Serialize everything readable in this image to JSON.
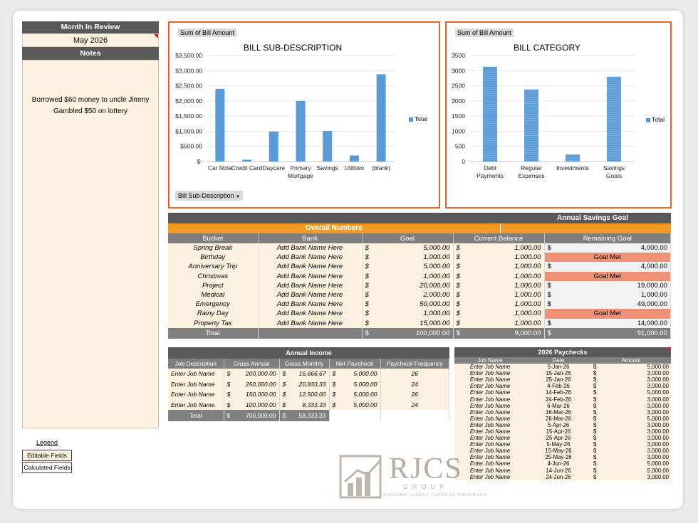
{
  "review": {
    "title": "Month In Review",
    "month": "May 2026",
    "notes_title": "Notes",
    "notes_lines": [
      "Borrowed $60 money to uncle Jimmy",
      "Gambled $50 on lottery"
    ]
  },
  "legend": {
    "title": "Legend",
    "editable": "Editable Fields",
    "calculated": "Calculated Fields"
  },
  "chart_data": [
    {
      "type": "bar",
      "field_label": "Sum of Bill Amount",
      "title": "BILL SUB-DESCRIPTION",
      "categories": [
        "Car Note",
        "Credit Card",
        "Daycare",
        "Primary Mortgage",
        "Savings",
        "Utilities",
        "(blank)"
      ],
      "series": [
        {
          "name": "Total",
          "values": [
            2400,
            60,
            990,
            2000,
            1010,
            200,
            2880
          ]
        }
      ],
      "ylim": [
        0,
        3500
      ],
      "yticks": [
        "$-",
        "$500.00",
        "$1,000.00",
        "$1,500.00",
        "$2,000.00",
        "$2,500.00",
        "$3,000.00",
        "$3,500.00"
      ],
      "filter_label": "Bill Sub-Description",
      "legend": "right"
    },
    {
      "type": "bar",
      "field_label": "Sum of Bill Amount",
      "title": "BILL CATEGORY",
      "categories": [
        "Debt Payments",
        "Regular Expenses",
        "Investments",
        "Savings Goals"
      ],
      "series": [
        {
          "name": "Total",
          "values": [
            3130,
            2380,
            230,
            2800
          ]
        }
      ],
      "ylim": [
        0,
        3500
      ],
      "yticks": [
        "0",
        "500",
        "1000",
        "1500",
        "2000",
        "2500",
        "3000",
        "3500"
      ],
      "legend": "right"
    }
  ],
  "savings": {
    "title": "Annual Savings Goal",
    "subtitle": "Overall Numbers",
    "headers": [
      "Bucket",
      "Bank",
      "Goal",
      "Current Balance",
      "Remaining Goal"
    ],
    "rows": [
      {
        "bucket": "Spring Break",
        "bank": "Add Bank Name Here",
        "goal": "5,000.00",
        "balance": "1,000.00",
        "remaining": "4,000.00"
      },
      {
        "bucket": "Birthday",
        "bank": "Add Bank Name Here",
        "goal": "1,000.00",
        "balance": "1,000.00",
        "remaining": "Goal Met"
      },
      {
        "bucket": "Anniversary Trip",
        "bank": "Add Bank Name Here",
        "goal": "5,000.00",
        "balance": "1,000.00",
        "remaining": "4,000.00"
      },
      {
        "bucket": "Christmas",
        "bank": "Add Bank Name Here",
        "goal": "1,000.00",
        "balance": "1,000.00",
        "remaining": "Goal Met"
      },
      {
        "bucket": "Project",
        "bank": "Add Bank Name Here",
        "goal": "20,000.00",
        "balance": "1,000.00",
        "remaining": "19,000.00"
      },
      {
        "bucket": "Medical",
        "bank": "Add Bank Name Here",
        "goal": "2,000.00",
        "balance": "1,000.00",
        "remaining": "1,000.00"
      },
      {
        "bucket": "Emergency",
        "bank": "Add Bank Name Here",
        "goal": "50,000.00",
        "balance": "1,000.00",
        "remaining": "49,000.00"
      },
      {
        "bucket": "Rainy Day",
        "bank": "Add Bank Name Here",
        "goal": "1,000.00",
        "balance": "1,000.00",
        "remaining": "Goal Met"
      },
      {
        "bucket": "Property Tax",
        "bank": "Add Bank Name Here",
        "goal": "15,000.00",
        "balance": "1,000.00",
        "remaining": "14,000.00"
      }
    ],
    "total": {
      "label": "Total",
      "goal": "100,000.00",
      "balance": "9,000.00",
      "remaining": "91,000.00"
    }
  },
  "income": {
    "title": "Annual Income",
    "headers": [
      "Job Description",
      "Gross Annual",
      "Gross Monthly",
      "Net Paycheck",
      "Paycheck Frequency"
    ],
    "rows": [
      {
        "job": "Enter Job Name",
        "annual": "200,000.00",
        "monthly": "16,666.67",
        "net": "5,000.00",
        "freq": "26"
      },
      {
        "job": "Enter Job Name",
        "annual": "250,000.00",
        "monthly": "20,833.33",
        "net": "5,000.00",
        "freq": "24"
      },
      {
        "job": "Enter Job Name",
        "annual": "150,000.00",
        "monthly": "12,500.00",
        "net": "5,000.00",
        "freq": "26"
      },
      {
        "job": "Enter Job Name",
        "annual": "100,000.00",
        "monthly": "8,333.33",
        "net": "5,000.00",
        "freq": "24"
      }
    ],
    "total": {
      "label": "Total",
      "annual": "700,000.00",
      "monthly": "58,333.33"
    }
  },
  "paychecks": {
    "title": "2026 Paychecks",
    "headers": [
      "Job Name",
      "Date",
      "Amount"
    ],
    "rows": [
      {
        "job": "Enter Job Name",
        "date": "5-Jan-26",
        "amount": "5,000.00"
      },
      {
        "job": "Enter Job Name",
        "date": "15-Jan-26",
        "amount": "3,000.00"
      },
      {
        "job": "Enter Job Name",
        "date": "25-Jan-26",
        "amount": "3,000.00"
      },
      {
        "job": "Enter Job Name",
        "date": "4-Feb-26",
        "amount": "3,000.00"
      },
      {
        "job": "Enter Job Name",
        "date": "14-Feb-26",
        "amount": "5,000.00"
      },
      {
        "job": "Enter Job Name",
        "date": "24-Feb-26",
        "amount": "3,000.00"
      },
      {
        "job": "Enter Job Name",
        "date": "6-Mar-26",
        "amount": "3,000.00"
      },
      {
        "job": "Enter Job Name",
        "date": "16-Mar-26",
        "amount": "3,000.00"
      },
      {
        "job": "Enter Job Name",
        "date": "26-Mar-26",
        "amount": "5,000.00"
      },
      {
        "job": "Enter Job Name",
        "date": "5-Apr-26",
        "amount": "3,000.00"
      },
      {
        "job": "Enter Job Name",
        "date": "15-Apr-26",
        "amount": "3,000.00"
      },
      {
        "job": "Enter Job Name",
        "date": "25-Apr-26",
        "amount": "3,000.00"
      },
      {
        "job": "Enter Job Name",
        "date": "5-May-26",
        "amount": "3,000.00"
      },
      {
        "job": "Enter Job Name",
        "date": "15-May-26",
        "amount": "3,000.00"
      },
      {
        "job": "Enter Job Name",
        "date": "25-May-26",
        "amount": "3,000.00"
      },
      {
        "job": "Enter Job Name",
        "date": "4-Jun-26",
        "amount": "5,000.00"
      },
      {
        "job": "Enter Job Name",
        "date": "14-Jun-26",
        "amount": "5,000.00"
      },
      {
        "job": "Enter Job Name",
        "date": "24-Jun-26",
        "amount": "3,000.00"
      }
    ]
  },
  "watermark": {
    "name": "RJCS",
    "group": "GROUP",
    "tagline": "BUILDING LEGACY THROUGH OWNERSHIP"
  },
  "currency_symbol": "$",
  "colors": {
    "accent": "#e8642b",
    "bar": "#5b9bd5",
    "header": "#595959",
    "orange": "#f59a23",
    "goal_met": "#ee9174",
    "cream": "#fcf2df"
  }
}
